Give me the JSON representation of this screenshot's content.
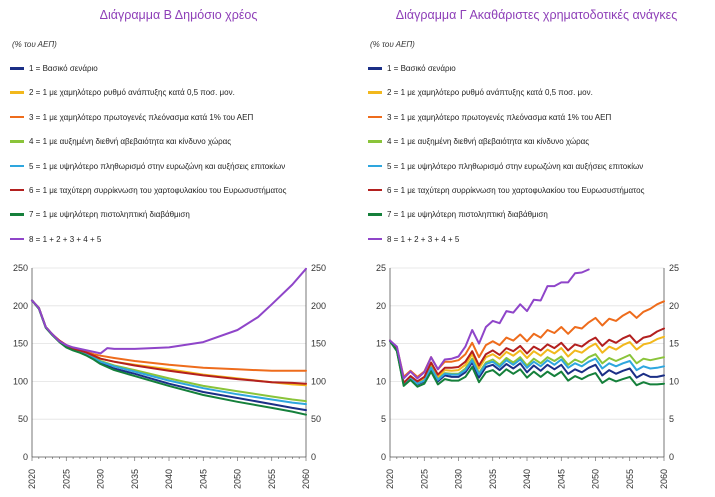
{
  "chart_data": [
    {
      "type": "line",
      "title": "Διάγραμμα Β Δημόσιο χρέος",
      "unit_label": "(% του ΑΕΠ)",
      "xlabel": "",
      "ylabel": "",
      "ylim": [
        0,
        250
      ],
      "yticks": [
        0,
        50,
        100,
        150,
        200,
        250
      ],
      "xticks": [
        "2020",
        "2025",
        "2030",
        "2035",
        "2040",
        "2045",
        "2050",
        "2055",
        "2060"
      ],
      "series": [
        {
          "name": "1 = Βασικό σενάριο",
          "color": "#1b2f86",
          "years": [
            2020,
            2021,
            2022,
            2023,
            2024,
            2025,
            2026,
            2027,
            2028,
            2029,
            2030,
            2032,
            2035,
            2040,
            2045,
            2050,
            2055,
            2058,
            2060
          ],
          "values": [
            207,
            197,
            172,
            162,
            153,
            146,
            142,
            139,
            135,
            130,
            124,
            117,
            110,
            97,
            86,
            78,
            70,
            65,
            62
          ]
        },
        {
          "name": "2 = 1 με χαμηλότερο ρυθμό ανάπτυξης κατά 0,5 ποσ. μον.",
          "color": "#f2b81d",
          "years": [
            2020,
            2021,
            2022,
            2023,
            2024,
            2025,
            2026,
            2027,
            2028,
            2029,
            2030,
            2032,
            2035,
            2040,
            2045,
            2050,
            2055,
            2058,
            2060
          ],
          "values": [
            207,
            197,
            172,
            162,
            153,
            147,
            143,
            141,
            137,
            134,
            130,
            126,
            122,
            116,
            109,
            104,
            99,
            96,
            95
          ]
        },
        {
          "name": "3 = 1 με χαμηλότερο πρωτογενές πλεόνασμα κατά 1% του ΑΕΠ",
          "color": "#ee6c1c",
          "years": [
            2020,
            2021,
            2022,
            2023,
            2024,
            2025,
            2026,
            2027,
            2028,
            2029,
            2030,
            2032,
            2035,
            2040,
            2045,
            2050,
            2055,
            2058,
            2060
          ],
          "values": [
            207,
            197,
            172,
            162,
            154,
            148,
            144,
            142,
            139,
            136,
            134,
            131,
            127,
            122,
            118,
            116,
            114,
            114,
            114
          ]
        },
        {
          "name": "4 = 1 με αυξημένη διεθνή αβεβαιότητα και κίνδυνο χώρας",
          "color": "#8ac43a",
          "years": [
            2020,
            2021,
            2022,
            2023,
            2024,
            2025,
            2026,
            2027,
            2028,
            2029,
            2030,
            2032,
            2035,
            2040,
            2045,
            2050,
            2055,
            2058,
            2060
          ],
          "values": [
            207,
            197,
            172,
            162,
            153,
            146,
            142,
            140,
            136,
            132,
            127,
            121,
            115,
            104,
            94,
            87,
            80,
            76,
            74
          ]
        },
        {
          "name": "5 = 1 με υψηλότερο πληθωρισμό στην ευρωζώνη και αυξήσεις επιτοκίων",
          "color": "#2ea6de",
          "years": [
            2020,
            2021,
            2022,
            2023,
            2024,
            2025,
            2026,
            2027,
            2028,
            2029,
            2030,
            2032,
            2035,
            2040,
            2045,
            2050,
            2055,
            2058,
            2060
          ],
          "values": [
            207,
            197,
            172,
            162,
            153,
            146,
            142,
            140,
            136,
            131,
            126,
            120,
            113,
            101,
            91,
            83,
            76,
            72,
            70
          ]
        },
        {
          "name": "6 = 1 με ταχύτερη συρρίκνωση του χαρτοφυλακίου του Ευρωσυστήματος",
          "color": "#b3201f",
          "years": [
            2020,
            2021,
            2022,
            2023,
            2024,
            2025,
            2026,
            2027,
            2028,
            2029,
            2030,
            2032,
            2035,
            2040,
            2045,
            2050,
            2055,
            2058,
            2060
          ],
          "values": [
            207,
            197,
            172,
            162,
            154,
            148,
            143,
            141,
            138,
            134,
            130,
            126,
            121,
            114,
            108,
            103,
            99,
            98,
            97
          ]
        },
        {
          "name": "7 = 1 με υψηλότερη πιστοληπτική διαβάθμιση",
          "color": "#15803b",
          "years": [
            2020,
            2021,
            2022,
            2023,
            2024,
            2025,
            2026,
            2027,
            2028,
            2029,
            2030,
            2032,
            2035,
            2040,
            2045,
            2050,
            2055,
            2058,
            2060
          ],
          "values": [
            207,
            196,
            171,
            161,
            152,
            145,
            141,
            138,
            134,
            129,
            123,
            115,
            107,
            94,
            82,
            73,
            65,
            60,
            56
          ]
        },
        {
          "name": "8 = 1 + 2 + 3 + 4 + 5",
          "color": "#8f45c9",
          "years": [
            2020,
            2021,
            2022,
            2023,
            2024,
            2025,
            2026,
            2027,
            2028,
            2029,
            2030,
            2031,
            2032,
            2035,
            2040,
            2045,
            2050,
            2053,
            2055,
            2058,
            2060
          ],
          "values": [
            207,
            197,
            172,
            162,
            153,
            148,
            145,
            143,
            141,
            139,
            137,
            144,
            143,
            143,
            145,
            152,
            168,
            185,
            202,
            228,
            249
          ]
        }
      ]
    },
    {
      "type": "line",
      "title": "Διάγραμμα Γ Ακαθάριστες χρηματοδοτικές ανάγκες",
      "unit_label": "(% του ΑΕΠ)",
      "xlabel": "",
      "ylabel": "",
      "ylim": [
        0,
        25
      ],
      "yticks": [
        0,
        5,
        10,
        15,
        20,
        25
      ],
      "xticks": [
        "2020",
        "2025",
        "2030",
        "2035",
        "2040",
        "2045",
        "2050",
        "2055",
        "2060"
      ],
      "years": [
        2020,
        2021,
        2022,
        2023,
        2024,
        2025,
        2026,
        2027,
        2028,
        2029,
        2030,
        2031,
        2032,
        2033,
        2034,
        2035,
        2036,
        2037,
        2038,
        2039,
        2040,
        2041,
        2042,
        2043,
        2044,
        2045,
        2046,
        2047,
        2048,
        2049,
        2050,
        2051,
        2052,
        2053,
        2054,
        2055,
        2056,
        2057,
        2058,
        2059,
        2060
      ],
      "series": [
        {
          "name": "1 = Βασικό σενάριο",
          "color": "#1b2f86",
          "values": [
            15.4,
            14.1,
            9.6,
            10.4,
            9.6,
            10.0,
            11.7,
            10.0,
            10.8,
            10.6,
            10.6,
            11.2,
            12.5,
            10.5,
            11.9,
            12.2,
            11.5,
            12.3,
            11.7,
            12.4,
            11.2,
            12.1,
            11.4,
            12.2,
            11.6,
            12.2,
            11.0,
            11.6,
            11.2,
            11.8,
            12.2,
            10.8,
            11.5,
            11.0,
            11.4,
            11.7,
            10.5,
            11.0,
            10.6,
            10.6,
            10.8
          ]
        },
        {
          "name": "2 = 1 με χαμηλότερο ρυθμό ανάπτυξης κατά 0,5 ποσ. μον.",
          "color": "#f2b81d",
          "values": [
            15.4,
            14.1,
            9.6,
            10.5,
            9.8,
            10.3,
            12.2,
            10.6,
            11.5,
            11.4,
            11.5,
            12.2,
            13.6,
            11.7,
            13.2,
            13.6,
            13.0,
            13.9,
            13.4,
            14.1,
            13.1,
            14.0,
            13.4,
            14.2,
            13.7,
            14.4,
            13.3,
            14.1,
            13.8,
            14.5,
            15.0,
            13.8,
            14.6,
            14.2,
            14.8,
            15.2,
            14.2,
            14.9,
            15.1,
            15.6,
            15.9
          ]
        },
        {
          "name": "3 = 1 με χαμηλότερο πρωτογενές πλεόνασμα κατά 1% του ΑΕΠ",
          "color": "#ee6c1c",
          "values": [
            15.4,
            14.5,
            10.6,
            11.4,
            10.6,
            11.3,
            13.2,
            11.6,
            12.6,
            12.6,
            12.8,
            13.6,
            15.1,
            13.2,
            14.8,
            15.3,
            14.8,
            15.8,
            15.4,
            16.2,
            15.3,
            16.3,
            15.8,
            16.8,
            16.4,
            17.2,
            16.3,
            17.2,
            17.0,
            17.8,
            18.4,
            17.4,
            18.3,
            18.0,
            18.7,
            19.2,
            18.4,
            19.2,
            19.6,
            20.2,
            20.6
          ]
        },
        {
          "name": "4 = 1 με αυξημένη διεθνή αβεβαιότητα και κίνδυνο χώρας",
          "color": "#8ac43a",
          "values": [
            15.4,
            14.1,
            9.6,
            10.4,
            9.7,
            10.1,
            11.9,
            10.3,
            11.1,
            11.0,
            11.0,
            11.7,
            13.0,
            11.1,
            12.5,
            12.9,
            12.2,
            13.1,
            12.5,
            13.2,
            12.1,
            13.0,
            12.4,
            13.2,
            12.7,
            13.3,
            12.2,
            12.9,
            12.5,
            13.2,
            13.6,
            12.4,
            13.1,
            12.7,
            13.1,
            13.5,
            12.4,
            13.0,
            12.8,
            13.0,
            13.2
          ]
        },
        {
          "name": "5 = 1 με υψηλότερο πληθωρισμό στην ευρωζώνη και αυξήσεις επιτοκίων",
          "color": "#2ea6de",
          "values": [
            15.4,
            14.1,
            9.6,
            10.4,
            9.7,
            10.1,
            11.8,
            10.2,
            11.0,
            10.9,
            10.9,
            11.5,
            12.8,
            10.9,
            12.3,
            12.6,
            11.9,
            12.8,
            12.2,
            12.9,
            11.8,
            12.6,
            12.0,
            12.8,
            12.2,
            12.9,
            11.8,
            12.4,
            12.0,
            12.6,
            13.0,
            11.7,
            12.4,
            12.0,
            12.4,
            12.7,
            11.5,
            12.0,
            11.7,
            11.8,
            12.0
          ]
        },
        {
          "name": "6 = 1 με ταχύτερη συρρίκνωση του χαρτοφυλακίου του Ευρωσυστήματος",
          "color": "#b3201f",
          "values": [
            15.4,
            14.2,
            9.8,
            10.7,
            10.0,
            10.6,
            12.5,
            10.9,
            11.8,
            11.8,
            11.9,
            12.6,
            14.0,
            12.1,
            13.6,
            14.1,
            13.5,
            14.4,
            14.0,
            14.7,
            13.7,
            14.6,
            14.1,
            14.9,
            14.4,
            15.1,
            14.1,
            14.9,
            14.6,
            15.3,
            15.8,
            14.7,
            15.5,
            15.1,
            15.7,
            16.1,
            15.1,
            15.8,
            16.0,
            16.6,
            17.0
          ]
        },
        {
          "name": "7 = 1 με υψηλότερη πιστοληπτική διαβάθμιση",
          "color": "#15803b",
          "values": [
            15.3,
            14.0,
            9.4,
            10.2,
            9.3,
            9.7,
            11.3,
            9.6,
            10.3,
            10.1,
            10.1,
            10.6,
            11.9,
            9.9,
            11.2,
            11.5,
            10.8,
            11.6,
            11.0,
            11.6,
            10.5,
            11.3,
            10.6,
            11.3,
            10.7,
            11.3,
            10.1,
            10.7,
            10.3,
            10.8,
            11.1,
            9.8,
            10.4,
            10.0,
            10.3,
            10.6,
            9.5,
            9.9,
            9.6,
            9.6,
            9.7
          ]
        },
        {
          "name": "8 = 1 + 2 + 3 + 4 + 5",
          "color": "#8f45c9",
          "values": [
            15.4,
            14.6,
            10.4,
            11.3,
            10.4,
            11.2,
            13.2,
            11.6,
            12.9,
            13.0,
            13.3,
            14.6,
            16.8,
            15.0,
            17.2,
            18.0,
            17.7,
            19.3,
            19.1,
            20.2,
            19.3,
            20.8,
            20.7,
            22.6,
            22.6,
            23.1,
            23.1,
            24.3,
            24.4,
            24.8
          ]
        }
      ]
    }
  ]
}
